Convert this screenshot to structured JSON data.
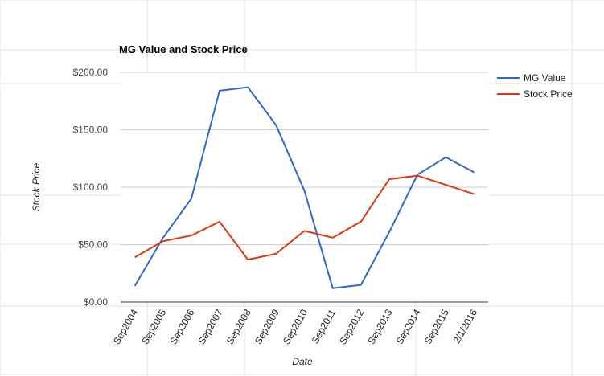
{
  "chart_data": {
    "type": "line",
    "title": "MG Value and Stock Price",
    "xlabel": "Date",
    "ylabel": "Stock Price",
    "categories": [
      "Sep2004",
      "Sep2005",
      "Sep2006",
      "Sep2007",
      "Sep2008",
      "Sep2009",
      "Sep2010",
      "Sep2011",
      "Sep2012",
      "Sep2013",
      "Sep2014",
      "Sep2015",
      "2/1/2016"
    ],
    "ylim": [
      0,
      200
    ],
    "yticks": [
      0,
      50,
      100,
      150,
      200
    ],
    "ytick_labels": [
      "$0.00",
      "$50.00",
      "$100.00",
      "$150.00",
      "$200.00"
    ],
    "grid": true,
    "legend_position": "right",
    "series": [
      {
        "name": "MG Value",
        "color": "#3366cc",
        "values": [
          14,
          56,
          90,
          184,
          187,
          154,
          97,
          12,
          15,
          61,
          111,
          126,
          113
        ]
      },
      {
        "name": "Stock Price",
        "color": "#dc3912",
        "values": [
          39,
          53,
          58,
          70,
          37,
          42,
          62,
          56,
          70,
          107,
          110,
          102,
          94
        ]
      }
    ]
  }
}
